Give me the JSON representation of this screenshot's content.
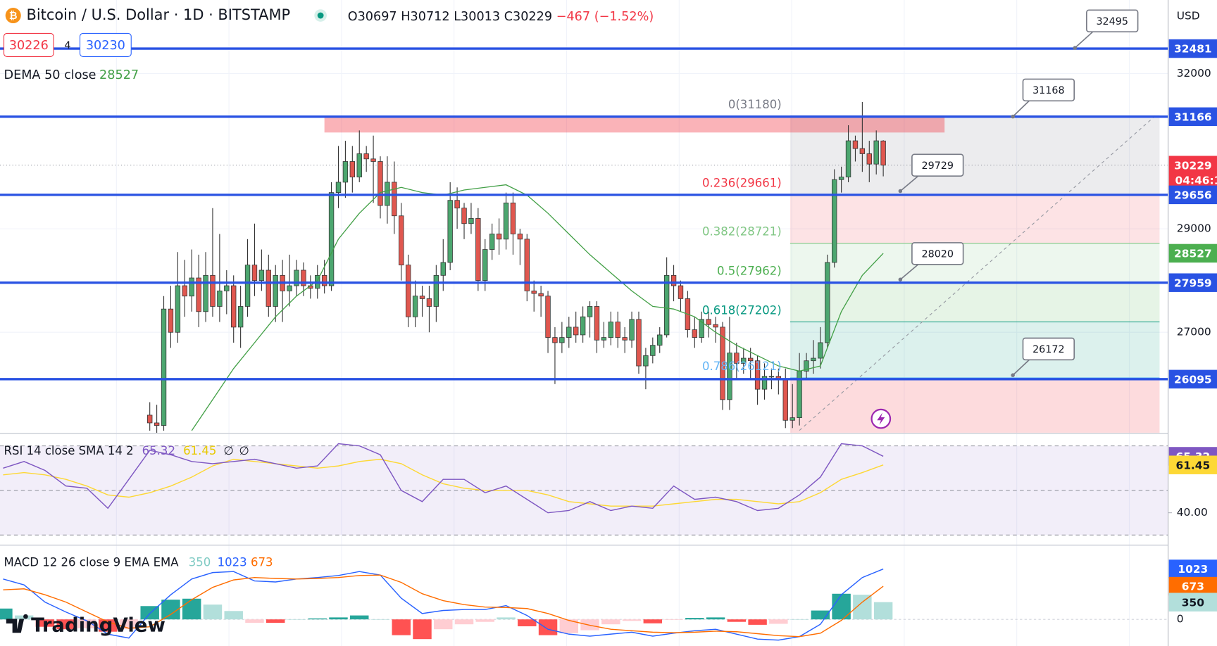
{
  "chart_data": {
    "type": "candlestick",
    "title": "Bitcoin / U.S. Dollar · 1D · BITSTAMP",
    "header": {
      "open": "O30697",
      "high": "H30712",
      "low": "L30013",
      "close": "C30229",
      "change": "−467 (−1.52%)"
    },
    "bid": "30226",
    "spread": "4",
    "ask": "30230",
    "currency": "USD",
    "brand": "TradingView",
    "up_color": "#4ca66f",
    "down_color": "#e0574f",
    "open": [
      25400,
      25250,
      25200,
      27450,
      27000,
      27900,
      27700,
      28050,
      27400,
      28100,
      27500,
      27800,
      27900,
      27100,
      27500,
      28300,
      28000,
      28200,
      27500,
      28100,
      27800,
      27900,
      28200,
      27900,
      27850,
      28100,
      27900,
      29700,
      29900,
      30300,
      30000,
      30450,
      30350,
      30300,
      29450,
      29900,
      29250,
      28300,
      27300,
      27700,
      27650,
      27500,
      28100,
      28350,
      29550,
      29400,
      29100,
      29200,
      28000,
      28600,
      28900,
      28800,
      29500,
      28900,
      28800,
      27800,
      27750,
      27700,
      26900,
      26800,
      26900,
      27100,
      26950,
      27300,
      27500,
      26850,
      26900,
      27200,
      26900,
      26850,
      27250,
      26350,
      26550,
      26750,
      26950,
      28100,
      27900,
      27650,
      27050,
      26900,
      27250,
      27150,
      27100,
      25700,
      26600,
      26400,
      26500,
      26450,
      25900,
      26150,
      26150,
      26100,
      25300,
      25350,
      26250,
      26450,
      26500,
      26800,
      28350,
      29950,
      30000,
      30700,
      30550,
      30450,
      30250,
      30697
    ],
    "high": [
      25650,
      25600,
      27700,
      27900,
      28550,
      28400,
      28600,
      28500,
      28550,
      29400,
      28900,
      28200,
      28100,
      27900,
      28800,
      29100,
      28600,
      28500,
      28300,
      28400,
      28500,
      28400,
      28350,
      28100,
      28300,
      28400,
      29900,
      30600,
      30700,
      30600,
      30900,
      30600,
      30800,
      30400,
      30400,
      30300,
      29500,
      28500,
      28000,
      27900,
      27900,
      28300,
      28800,
      29900,
      29800,
      29500,
      29500,
      29400,
      28800,
      29100,
      29200,
      29700,
      29700,
      29000,
      28900,
      28000,
      27900,
      27800,
      27100,
      27200,
      27300,
      27400,
      27500,
      27600,
      27600,
      27200,
      27400,
      27400,
      27100,
      27400,
      27400,
      26700,
      26900,
      27100,
      28450,
      28300,
      28000,
      27800,
      27300,
      27400,
      27400,
      27300,
      27200,
      27300,
      26800,
      26700,
      26700,
      26550,
      26400,
      26300,
      26300,
      26300,
      26000,
      26600,
      26600,
      26850,
      27100,
      28500,
      30150,
      30200,
      31000,
      30800,
      31450,
      30700,
      30900,
      30712
    ],
    "low": [
      25100,
      25000,
      25100,
      26700,
      26800,
      27300,
      27400,
      27100,
      27200,
      27300,
      27200,
      27350,
      26800,
      26700,
      27300,
      27700,
      27800,
      27300,
      27200,
      27200,
      27500,
      27700,
      27700,
      27650,
      27650,
      27750,
      27800,
      29400,
      29600,
      29700,
      29900,
      30100,
      29500,
      29200,
      29100,
      28900,
      28000,
      27100,
      27100,
      27300,
      27000,
      27200,
      27800,
      28200,
      29000,
      28800,
      28900,
      27800,
      27800,
      28400,
      28500,
      28600,
      28500,
      28300,
      27600,
      27400,
      27300,
      26600,
      26000,
      26600,
      26700,
      26800,
      26800,
      26900,
      26600,
      26700,
      26750,
      26700,
      26600,
      26700,
      26200,
      25900,
      26400,
      26600,
      26900,
      27600,
      27400,
      26900,
      26700,
      26800,
      26900,
      26800,
      25500,
      25500,
      26100,
      26200,
      26100,
      25600,
      25700,
      25900,
      25800,
      25150,
      25150,
      25200,
      26100,
      26200,
      26300,
      26700,
      28250,
      29700,
      29900,
      30300,
      30100,
      29900,
      30050,
      30013
    ],
    "close": [
      25250,
      25200,
      27450,
      27000,
      27900,
      27700,
      28050,
      27400,
      28100,
      27500,
      27800,
      27900,
      27100,
      27500,
      28300,
      28000,
      28200,
      27500,
      28100,
      27800,
      27900,
      28200,
      27900,
      27850,
      28100,
      27900,
      29700,
      29900,
      30300,
      30000,
      30450,
      30350,
      30300,
      29450,
      29900,
      29250,
      28300,
      27300,
      27700,
      27650,
      27500,
      28100,
      28350,
      29550,
      29400,
      29100,
      29200,
      28000,
      28600,
      28900,
      28800,
      29500,
      28900,
      28800,
      27800,
      27750,
      27700,
      26900,
      26800,
      26900,
      27100,
      26950,
      27300,
      27500,
      26850,
      26900,
      27200,
      26900,
      26850,
      27250,
      26350,
      26550,
      26750,
      26950,
      28100,
      27900,
      27650,
      27050,
      26900,
      27250,
      27150,
      27100,
      25700,
      26600,
      26400,
      26500,
      26450,
      25900,
      26150,
      26150,
      26100,
      25300,
      25350,
      26250,
      26450,
      26500,
      26800,
      28350,
      29950,
      30000,
      30700,
      30550,
      30450,
      30250,
      30700,
      30229
    ],
    "ylim": [
      25060,
      33420
    ],
    "yticks": [
      27000,
      29000,
      32000
    ],
    "grid": true,
    "levels": [
      32481,
      31166,
      29656,
      27959,
      26095
    ],
    "level_color": "#2952e3",
    "resistance_zone": [
      30860,
      31175
    ],
    "price_labels": [
      {
        "value": 32481,
        "color": "#2952e3"
      },
      {
        "value": 31166,
        "color": "#2952e3"
      },
      {
        "value": 30229,
        "color": "#f23645"
      },
      {
        "value": 29656,
        "color": "#2952e3"
      },
      {
        "value": 28527,
        "color": "#4caf50"
      },
      {
        "value": 27959,
        "color": "#2952e3"
      },
      {
        "value": 26095,
        "color": "#2952e3"
      }
    ],
    "countdown": "04:46:1",
    "callouts": [
      32495,
      31168,
      29729,
      28020,
      26172
    ],
    "fib": [
      {
        "label": "0(31180)",
        "value": 31180,
        "color": "#787b86"
      },
      {
        "label": "0.236(29661)",
        "value": 29661,
        "color": "#f23645"
      },
      {
        "label": "0.382(28721)",
        "value": 28721,
        "color": "#81c784"
      },
      {
        "label": "0.5(27962)",
        "value": 27962,
        "color": "#4caf50"
      },
      {
        "label": "0.618(27202)",
        "value": 27202,
        "color": "#089981"
      },
      {
        "label": "0.786(26121)",
        "value": 26121,
        "color": "#64b5f6"
      }
    ],
    "dema": {
      "name": "DEMA 50 close",
      "color": "#43a047",
      "x": [
        6,
        9,
        12,
        15,
        18,
        21,
        24,
        27,
        30,
        33,
        36,
        39,
        42,
        45,
        48,
        51,
        54,
        57,
        60,
        63,
        66,
        69,
        72,
        75,
        78,
        81,
        84,
        87,
        90,
        93,
        96,
        99,
        102,
        105
      ],
      "values": [
        25100,
        25700,
        26300,
        26800,
        27300,
        27700,
        28000,
        28800,
        29300,
        29700,
        29800,
        29700,
        29650,
        29750,
        29800,
        29850,
        29650,
        29300,
        28900,
        28500,
        28150,
        27800,
        27500,
        27450,
        27300,
        27000,
        26750,
        26550,
        26350,
        26250,
        26350,
        27400,
        28100,
        28527
      ]
    },
    "rsi": {
      "name": "RSI 14 close SMA 14 2",
      "color": "#7e57c2",
      "sma_color": "#fdd835",
      "extras": [
        "∅",
        "∅"
      ],
      "ylim": [
        25.8,
        75.2
      ],
      "yticks": [
        {
          "value": 40,
          "label": "40.00"
        }
      ],
      "bands": [
        30,
        50,
        70
      ],
      "x": [
        -21,
        -18,
        -15,
        -12,
        -9,
        -6,
        -3,
        0,
        3,
        6,
        9,
        12,
        15,
        18,
        21,
        24,
        27,
        30,
        33,
        36,
        39,
        42,
        45,
        48,
        51,
        54,
        57,
        60,
        63,
        66,
        69,
        72,
        75,
        78,
        81,
        84,
        87,
        90,
        93,
        96,
        99,
        102,
        105
      ],
      "values": [
        60,
        63,
        59,
        52,
        51,
        42,
        55,
        68,
        66,
        63,
        62,
        63,
        64,
        62,
        60,
        61,
        71,
        70,
        66,
        50,
        45,
        55,
        55,
        49,
        52,
        46,
        40,
        41,
        45,
        41,
        43,
        42,
        52,
        46,
        47,
        45,
        41,
        42,
        48,
        56,
        71,
        70,
        65.32
      ],
      "sma": [
        57,
        58,
        57,
        55,
        52,
        48,
        47,
        49,
        52,
        56,
        61,
        64,
        63,
        62,
        61,
        60,
        61,
        63,
        64,
        62,
        57,
        53,
        51,
        50,
        50,
        50,
        48,
        45,
        44,
        43,
        43,
        43,
        44,
        45,
        46,
        46,
        45,
        44,
        45,
        49,
        55,
        58,
        61.45
      ]
    },
    "macd": {
      "name": "MACD 12 26 close 9 EMA EMA",
      "macd_color": "#2962ff",
      "signal_color": "#ff6d00",
      "up_color": "#26a69a",
      "down_color": "#ff5252",
      "ylim": [
        -540,
        1490
      ],
      "yticks": [
        0
      ],
      "x": [
        -21,
        -18,
        -15,
        -12,
        -9,
        -6,
        -3,
        0,
        3,
        6,
        9,
        12,
        15,
        18,
        21,
        24,
        27,
        30,
        33,
        36,
        39,
        42,
        45,
        48,
        51,
        54,
        57,
        60,
        63,
        66,
        69,
        72,
        75,
        78,
        81,
        84,
        87,
        90,
        93,
        96,
        99,
        102,
        105
      ],
      "histogram": [
        220,
        80,
        -150,
        -200,
        -180,
        -250,
        -200,
        270,
        400,
        420,
        300,
        170,
        -70,
        -70,
        0,
        20,
        40,
        80,
        0,
        -320,
        -400,
        -200,
        -100,
        -50,
        40,
        -140,
        -320,
        -280,
        -220,
        -100,
        -30,
        -80,
        -10,
        30,
        40,
        -50,
        -110,
        -90,
        0,
        180,
        520,
        500,
        350
      ],
      "macd": [
        820,
        700,
        350,
        150,
        -30,
        -300,
        -380,
        120,
        500,
        820,
        950,
        970,
        780,
        760,
        820,
        850,
        890,
        970,
        900,
        430,
        120,
        180,
        200,
        200,
        280,
        80,
        -200,
        -300,
        -340,
        -300,
        -260,
        -340,
        -280,
        -230,
        -200,
        -300,
        -400,
        -420,
        -350,
        -100,
        500,
        850,
        1023
      ],
      "signal": [
        600,
        620,
        500,
        350,
        150,
        -50,
        -180,
        -150,
        100,
        400,
        650,
        800,
        850,
        830,
        820,
        830,
        850,
        890,
        900,
        750,
        520,
        380,
        300,
        250,
        240,
        220,
        120,
        -20,
        -120,
        -200,
        -230,
        -260,
        -270,
        -260,
        -240,
        -250,
        -290,
        -330,
        -350,
        -280,
        -20,
        350,
        673
      ]
    }
  }
}
